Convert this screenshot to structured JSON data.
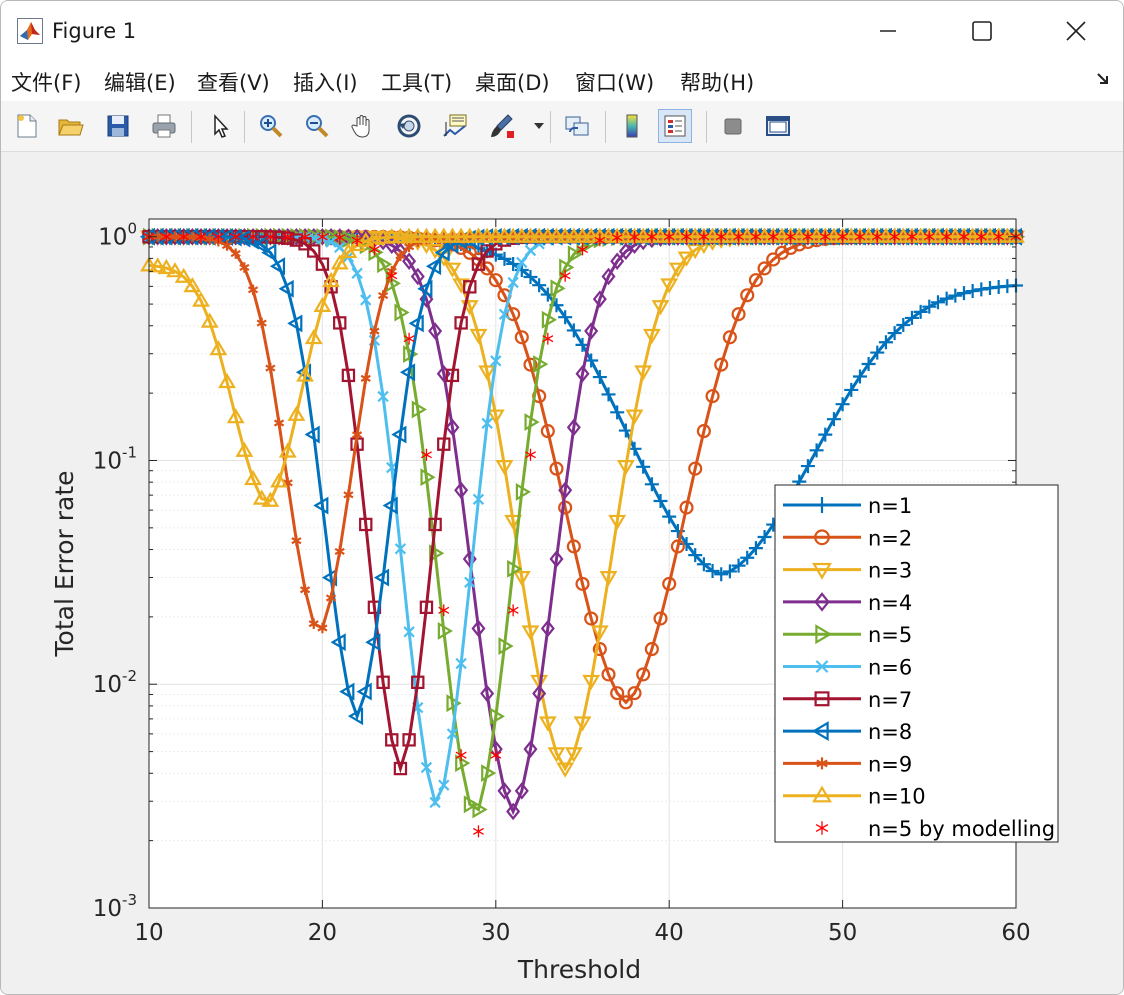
{
  "window": {
    "title": "Figure 1"
  },
  "menu": [
    "文件(F)",
    "编辑(E)",
    "查看(V)",
    "插入(I)",
    "工具(T)",
    "桌面(D)",
    "窗口(W)",
    "帮助(H)"
  ],
  "toolbar_icons": [
    "new-figure-icon",
    "open-file-icon",
    "save-icon",
    "print-icon",
    "pointer-icon",
    "zoom-in-icon",
    "zoom-out-icon",
    "pan-hand-icon",
    "rotate-3d-icon",
    "data-cursor-icon",
    "brush-icon",
    "link-plot-icon",
    "colorbar-icon",
    "legend-icon",
    "hide-plot-tools-icon",
    "show-plot-tools-icon"
  ],
  "chart_data": {
    "type": "line",
    "xlabel": "Threshold",
    "ylabel": "Total Error rate",
    "xlim": [
      10,
      60
    ],
    "ylim": [
      0.001,
      1.2
    ],
    "yscale": "log",
    "xticks": [
      10,
      20,
      30,
      40,
      50,
      60
    ],
    "yticks": [
      {
        "value": 1,
        "base": "10",
        "exp": "0"
      },
      {
        "value": 0.1,
        "base": "10",
        "exp": "-1"
      },
      {
        "value": 0.01,
        "base": "10",
        "exp": "-2"
      },
      {
        "value": 0.001,
        "base": "10",
        "exp": "-3"
      }
    ],
    "grid": true,
    "legend_position": "inside right",
    "series": [
      {
        "name": "n=1",
        "color": "#0072BD",
        "marker": "plus",
        "min_x": 43.0,
        "min_y": 0.031,
        "width": 9.0,
        "left": 1.0,
        "right_end": 0.62
      },
      {
        "name": "n=2",
        "color": "#D95319",
        "marker": "circle",
        "min_x": 37.5,
        "min_y": 0.0083,
        "width": 5.8,
        "left": 1.0,
        "right_end": 1.0
      },
      {
        "name": "n=3",
        "color": "#EDB120",
        "marker": "triangle-down",
        "min_x": 34.0,
        "min_y": 0.0042,
        "width": 4.6,
        "left": 1.0,
        "right_end": 1.0
      },
      {
        "name": "n=4",
        "color": "#7E2F8E",
        "marker": "diamond",
        "min_x": 31.0,
        "min_y": 0.0027,
        "width": 4.0,
        "left": 1.0,
        "right_end": 1.0
      },
      {
        "name": "n=5",
        "color": "#77AC30",
        "marker": "triangle-right",
        "min_x": 28.8,
        "min_y": 0.0026,
        "width": 3.6,
        "left": 1.0,
        "right_end": 1.0
      },
      {
        "name": "n=6",
        "color": "#4DBEEE",
        "marker": "x",
        "min_x": 26.6,
        "min_y": 0.0029,
        "width": 3.3,
        "left": 1.0,
        "right_end": 1.0
      },
      {
        "name": "n=7",
        "color": "#A2142F",
        "marker": "square",
        "min_x": 24.5,
        "min_y": 0.0042,
        "width": 3.1,
        "left": 1.0,
        "right_end": 1.0
      },
      {
        "name": "n=8",
        "color": "#0072BD",
        "marker": "triangle-left",
        "min_x": 22.0,
        "min_y": 0.0072,
        "width": 3.2,
        "left": 1.0,
        "right_end": 1.0
      },
      {
        "name": "n=9",
        "color": "#D95319",
        "marker": "star6",
        "min_x": 19.8,
        "min_y": 0.017,
        "width": 3.2,
        "left": 1.0,
        "right_end": 1.0
      },
      {
        "name": "n=10",
        "color": "#EDB120",
        "marker": "triangle-up",
        "min_x": 16.8,
        "min_y": 0.064,
        "width": 3.3,
        "left": 0.75,
        "right_end": 1.0
      },
      {
        "name": "n=5 by modelling",
        "color": "#FF0000",
        "marker": "asterisk",
        "min_x": 29.0,
        "min_y": 0.0022,
        "width": 3.6,
        "left": 1.0,
        "right_end": 1.0
      }
    ]
  }
}
